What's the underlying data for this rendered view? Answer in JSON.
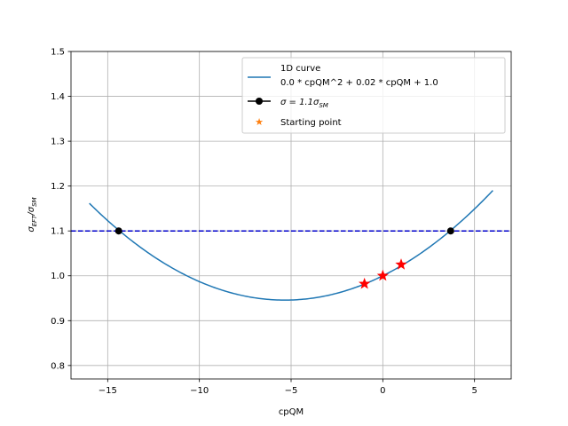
{
  "chart_data": {
    "type": "line",
    "xlabel": "cpQM",
    "ylabel": {
      "base": "σ",
      "sub1": "EFT",
      "slash": "/σ",
      "sub2": "SM"
    },
    "xlim": [
      -17,
      7
    ],
    "ylim": [
      0.77,
      1.5
    ],
    "xticks": [
      -15,
      -10,
      -5,
      0,
      5
    ],
    "xtick_labels": [
      "−15",
      "−10",
      "−5",
      "0",
      "5"
    ],
    "yticks": [
      0.8,
      0.9,
      1.0,
      1.1,
      1.2,
      1.3,
      1.4,
      1.5
    ],
    "ytick_labels": [
      "0.8",
      "0.9",
      "1.0",
      "1.1",
      "1.2",
      "1.3",
      "1.4",
      "1.5"
    ],
    "grid": true,
    "legend_position": "top-right",
    "curve": {
      "label_line1": "1D curve",
      "label_line2": "0.0 * cpQM^2 + 0.02 * cpQM + 1.0",
      "a": 0.0019,
      "b": 0.0203,
      "c": 1.0,
      "x_range": [
        -16,
        6
      ],
      "color": "#1f77b4"
    },
    "threshold": {
      "y": 1.1,
      "color": "#0000cc",
      "label_main": "σ = 1.1σ",
      "label_sub": "SM",
      "points": [
        {
          "x": -14.4,
          "y": 1.1
        },
        {
          "x": 3.7,
          "y": 1.1
        }
      ],
      "marker_color": "#000000"
    },
    "starting_points": {
      "label": "Starting point",
      "legend_color": "#ff7f0e",
      "marker_color": "#ff0000",
      "points": [
        {
          "x": -1.0,
          "y": 0.982
        },
        {
          "x": 0.0,
          "y": 1.0
        },
        {
          "x": 1.0,
          "y": 1.025
        }
      ]
    }
  }
}
